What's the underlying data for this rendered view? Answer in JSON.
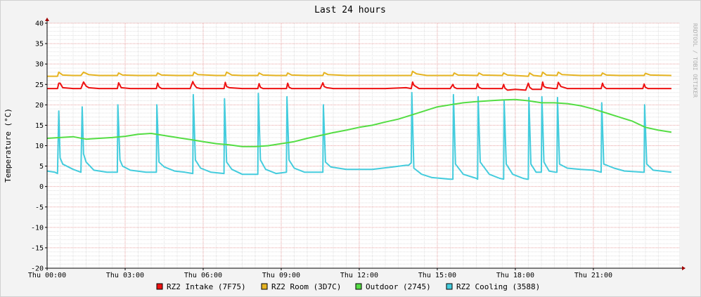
{
  "chart_data": {
    "type": "line",
    "title": "Last 24 hours",
    "ylabel": "Temperature (°C)",
    "watermark": "RRDTOOL / TOBI OETIKER",
    "ylim": [
      -20,
      40
    ],
    "y_ticks": [
      40,
      35,
      30,
      25,
      20,
      15,
      10,
      5,
      0,
      -5,
      -10,
      -15,
      -20
    ],
    "xlim": [
      0,
      24.3
    ],
    "x_ticks": [
      {
        "hour": 0,
        "label": "Thu 00:00"
      },
      {
        "hour": 3,
        "label": "Thu 03:00"
      },
      {
        "hour": 6,
        "label": "Thu 06:00"
      },
      {
        "hour": 9,
        "label": "Thu 09:00"
      },
      {
        "hour": 12,
        "label": "Thu 12:00"
      },
      {
        "hour": 15,
        "label": "Thu 15:00"
      },
      {
        "hour": 18,
        "label": "Thu 18:00"
      },
      {
        "hour": 21,
        "label": "Thu 21:00"
      }
    ],
    "grid": true,
    "legend_position": "bottom",
    "series": [
      {
        "name": "RZ2 Intake (7F75)",
        "color": "#ee1111",
        "x": [
          0,
          0.4,
          0.45,
          0.5,
          0.6,
          1.0,
          1.3,
          1.4,
          1.5,
          1.6,
          2.0,
          2.5,
          2.7,
          2.75,
          2.85,
          3.2,
          3.8,
          4.2,
          4.25,
          4.3,
          4.4,
          5.0,
          5.5,
          5.6,
          5.65,
          5.75,
          5.9,
          6.5,
          6.8,
          6.85,
          6.9,
          7.0,
          7.5,
          8.1,
          8.15,
          8.2,
          8.3,
          8.7,
          9.2,
          9.25,
          9.3,
          9.4,
          9.8,
          10.5,
          10.6,
          10.65,
          10.75,
          11.0,
          12.0,
          13.0,
          13.8,
          14.0,
          14.05,
          14.1,
          14.3,
          14.6,
          15.0,
          15.5,
          15.6,
          15.65,
          15.75,
          16.0,
          16.5,
          16.55,
          16.6,
          16.7,
          17.2,
          17.5,
          17.55,
          17.6,
          17.7,
          18.0,
          18.4,
          18.5,
          18.55,
          18.65,
          19.0,
          19.05,
          19.1,
          19.2,
          19.5,
          19.6,
          19.65,
          19.75,
          20.0,
          21.0,
          21.3,
          21.35,
          21.4,
          21.5,
          22.0,
          22.5,
          22.9,
          22.95,
          23.0,
          23.1,
          23.5,
          24.0
        ],
        "values": [
          24.0,
          24.0,
          25.3,
          25.3,
          24.2,
          24.0,
          24.0,
          25.6,
          24.6,
          24.2,
          24.0,
          24.0,
          24.0,
          25.4,
          24.2,
          24.0,
          24.0,
          24.0,
          25.3,
          24.4,
          24.0,
          24.0,
          24.0,
          25.7,
          25.0,
          24.2,
          24.0,
          24.0,
          24.0,
          25.5,
          24.5,
          24.2,
          24.0,
          24.0,
          25.2,
          24.3,
          24.0,
          24.0,
          24.0,
          25.3,
          24.3,
          24.0,
          24.0,
          24.0,
          25.4,
          24.5,
          24.2,
          24.0,
          24.0,
          24.0,
          24.2,
          24.0,
          25.6,
          24.8,
          24.0,
          24.0,
          24.0,
          24.0,
          25.0,
          24.3,
          24.0,
          24.0,
          24.0,
          25.2,
          24.3,
          24.0,
          24.0,
          24.0,
          25.0,
          24.1,
          23.6,
          23.8,
          23.6,
          25.3,
          24.3,
          23.8,
          23.8,
          25.6,
          24.5,
          24.2,
          24.0,
          24.0,
          25.5,
          24.5,
          24.0,
          24.0,
          24.0,
          25.3,
          24.5,
          24.0,
          24.0,
          24.0,
          24.0,
          25.1,
          24.3,
          24.0,
          24.0,
          24.0
        ]
      },
      {
        "name": "RZ2 Room (3D7C)",
        "color": "#e6b422",
        "x": [
          0,
          0.4,
          0.45,
          0.6,
          1.0,
          1.3,
          1.4,
          1.6,
          2.0,
          2.7,
          2.75,
          2.9,
          3.5,
          4.2,
          4.25,
          4.4,
          5.0,
          5.6,
          5.65,
          5.8,
          6.5,
          6.85,
          6.9,
          7.1,
          7.5,
          8.1,
          8.15,
          8.3,
          8.8,
          9.2,
          9.25,
          9.4,
          10.0,
          10.6,
          10.65,
          10.8,
          11.5,
          12.5,
          13.5,
          14.0,
          14.05,
          14.2,
          14.6,
          15.6,
          15.65,
          15.8,
          16.55,
          16.6,
          16.75,
          17.5,
          17.55,
          17.7,
          18.5,
          18.55,
          18.7,
          19.0,
          19.05,
          19.2,
          19.6,
          19.65,
          19.8,
          20.5,
          21.3,
          21.35,
          21.5,
          22.0,
          22.95,
          23.0,
          23.2,
          24.0
        ],
        "values": [
          27.0,
          27.0,
          28.0,
          27.3,
          27.2,
          27.2,
          28.0,
          27.4,
          27.2,
          27.2,
          27.8,
          27.3,
          27.2,
          27.2,
          27.8,
          27.3,
          27.2,
          27.2,
          28.0,
          27.4,
          27.2,
          27.2,
          28.0,
          27.3,
          27.2,
          27.2,
          27.8,
          27.3,
          27.2,
          27.2,
          27.8,
          27.3,
          27.2,
          27.2,
          27.9,
          27.4,
          27.2,
          27.2,
          27.2,
          27.2,
          28.2,
          27.6,
          27.2,
          27.2,
          27.8,
          27.3,
          27.2,
          27.8,
          27.3,
          27.2,
          27.8,
          27.3,
          27.0,
          27.8,
          27.2,
          27.0,
          28.0,
          27.3,
          27.2,
          28.0,
          27.4,
          27.2,
          27.2,
          27.8,
          27.3,
          27.2,
          27.2,
          27.7,
          27.3,
          27.2
        ]
      },
      {
        "name": "Outdoor (2745)",
        "color": "#55dd44",
        "x": [
          0,
          0.5,
          1.0,
          1.5,
          2.0,
          2.5,
          3.0,
          3.5,
          4.0,
          4.5,
          5.0,
          5.5,
          6.0,
          6.5,
          7.0,
          7.5,
          8.0,
          8.5,
          9.0,
          9.5,
          10.0,
          10.5,
          11.0,
          11.5,
          12.0,
          12.5,
          13.0,
          13.5,
          14.0,
          14.5,
          15.0,
          15.5,
          16.0,
          16.5,
          17.0,
          17.5,
          18.0,
          18.5,
          19.0,
          19.5,
          20.0,
          20.5,
          21.0,
          21.5,
          22.0,
          22.5,
          23.0,
          23.5,
          24.0
        ],
        "values": [
          11.8,
          12.0,
          12.2,
          11.6,
          11.8,
          12.0,
          12.3,
          12.8,
          13.0,
          12.5,
          12.0,
          11.5,
          11.0,
          10.5,
          10.2,
          9.8,
          9.8,
          10.0,
          10.5,
          11.0,
          11.8,
          12.5,
          13.2,
          13.8,
          14.5,
          15.0,
          15.8,
          16.5,
          17.5,
          18.5,
          19.5,
          20.0,
          20.5,
          20.8,
          21.0,
          21.2,
          21.3,
          21.0,
          20.5,
          20.5,
          20.3,
          19.8,
          19.0,
          18.0,
          17.0,
          16.0,
          14.5,
          13.8,
          13.3
        ]
      },
      {
        "name": "RZ2 Cooling (3588)",
        "color": "#44ccdd",
        "x": [
          0,
          0.3,
          0.4,
          0.45,
          0.5,
          0.6,
          1.0,
          1.3,
          1.35,
          1.4,
          1.5,
          1.8,
          2.3,
          2.7,
          2.72,
          2.8,
          2.9,
          3.2,
          3.8,
          4.2,
          4.22,
          4.3,
          4.5,
          4.9,
          5.3,
          5.6,
          5.62,
          5.7,
          5.9,
          6.3,
          6.8,
          6.82,
          6.9,
          7.1,
          7.5,
          8.1,
          8.12,
          8.2,
          8.4,
          8.8,
          9.2,
          9.22,
          9.3,
          9.5,
          9.9,
          10.6,
          10.62,
          10.7,
          10.9,
          11.5,
          12.5,
          13.3,
          13.8,
          13.9,
          14.0,
          14.02,
          14.1,
          14.4,
          14.8,
          15.5,
          15.6,
          15.62,
          15.7,
          16.0,
          16.5,
          16.55,
          16.57,
          16.65,
          17.0,
          17.4,
          17.55,
          17.57,
          17.65,
          17.9,
          18.3,
          18.45,
          18.5,
          18.52,
          18.6,
          18.8,
          19.0,
          19.02,
          19.1,
          19.3,
          19.55,
          19.6,
          19.62,
          19.7,
          20.0,
          20.5,
          21.0,
          21.3,
          21.32,
          21.4,
          21.8,
          22.2,
          22.9,
          22.95,
          22.97,
          23.05,
          23.3,
          24.0
        ],
        "values": [
          3.8,
          3.5,
          3.2,
          18.5,
          7.0,
          5.5,
          4.2,
          3.5,
          19.5,
          8.0,
          6.0,
          4.0,
          3.5,
          3.5,
          20.0,
          6.5,
          5.0,
          4.0,
          3.5,
          3.5,
          20.0,
          6.0,
          4.8,
          3.8,
          3.5,
          3.2,
          22.5,
          6.5,
          4.5,
          3.5,
          3.2,
          21.5,
          6.0,
          4.2,
          3.0,
          3.0,
          22.8,
          6.5,
          4.2,
          3.2,
          3.5,
          22.0,
          6.5,
          4.5,
          3.5,
          3.5,
          20.0,
          6.0,
          4.8,
          4.2,
          4.2,
          4.8,
          5.2,
          5.2,
          5.8,
          23.0,
          4.5,
          3.0,
          2.2,
          1.8,
          1.8,
          22.5,
          5.5,
          3.0,
          2.0,
          1.8,
          22.0,
          6.0,
          3.0,
          2.0,
          1.8,
          21.0,
          5.5,
          3.0,
          2.0,
          1.8,
          1.8,
          21.8,
          5.5,
          3.5,
          3.5,
          22.0,
          6.0,
          3.8,
          3.5,
          3.5,
          21.8,
          5.5,
          4.5,
          4.2,
          4.0,
          3.5,
          20.5,
          5.5,
          4.5,
          3.8,
          3.5,
          3.5,
          20.0,
          5.5,
          4.0,
          3.5
        ]
      }
    ]
  }
}
